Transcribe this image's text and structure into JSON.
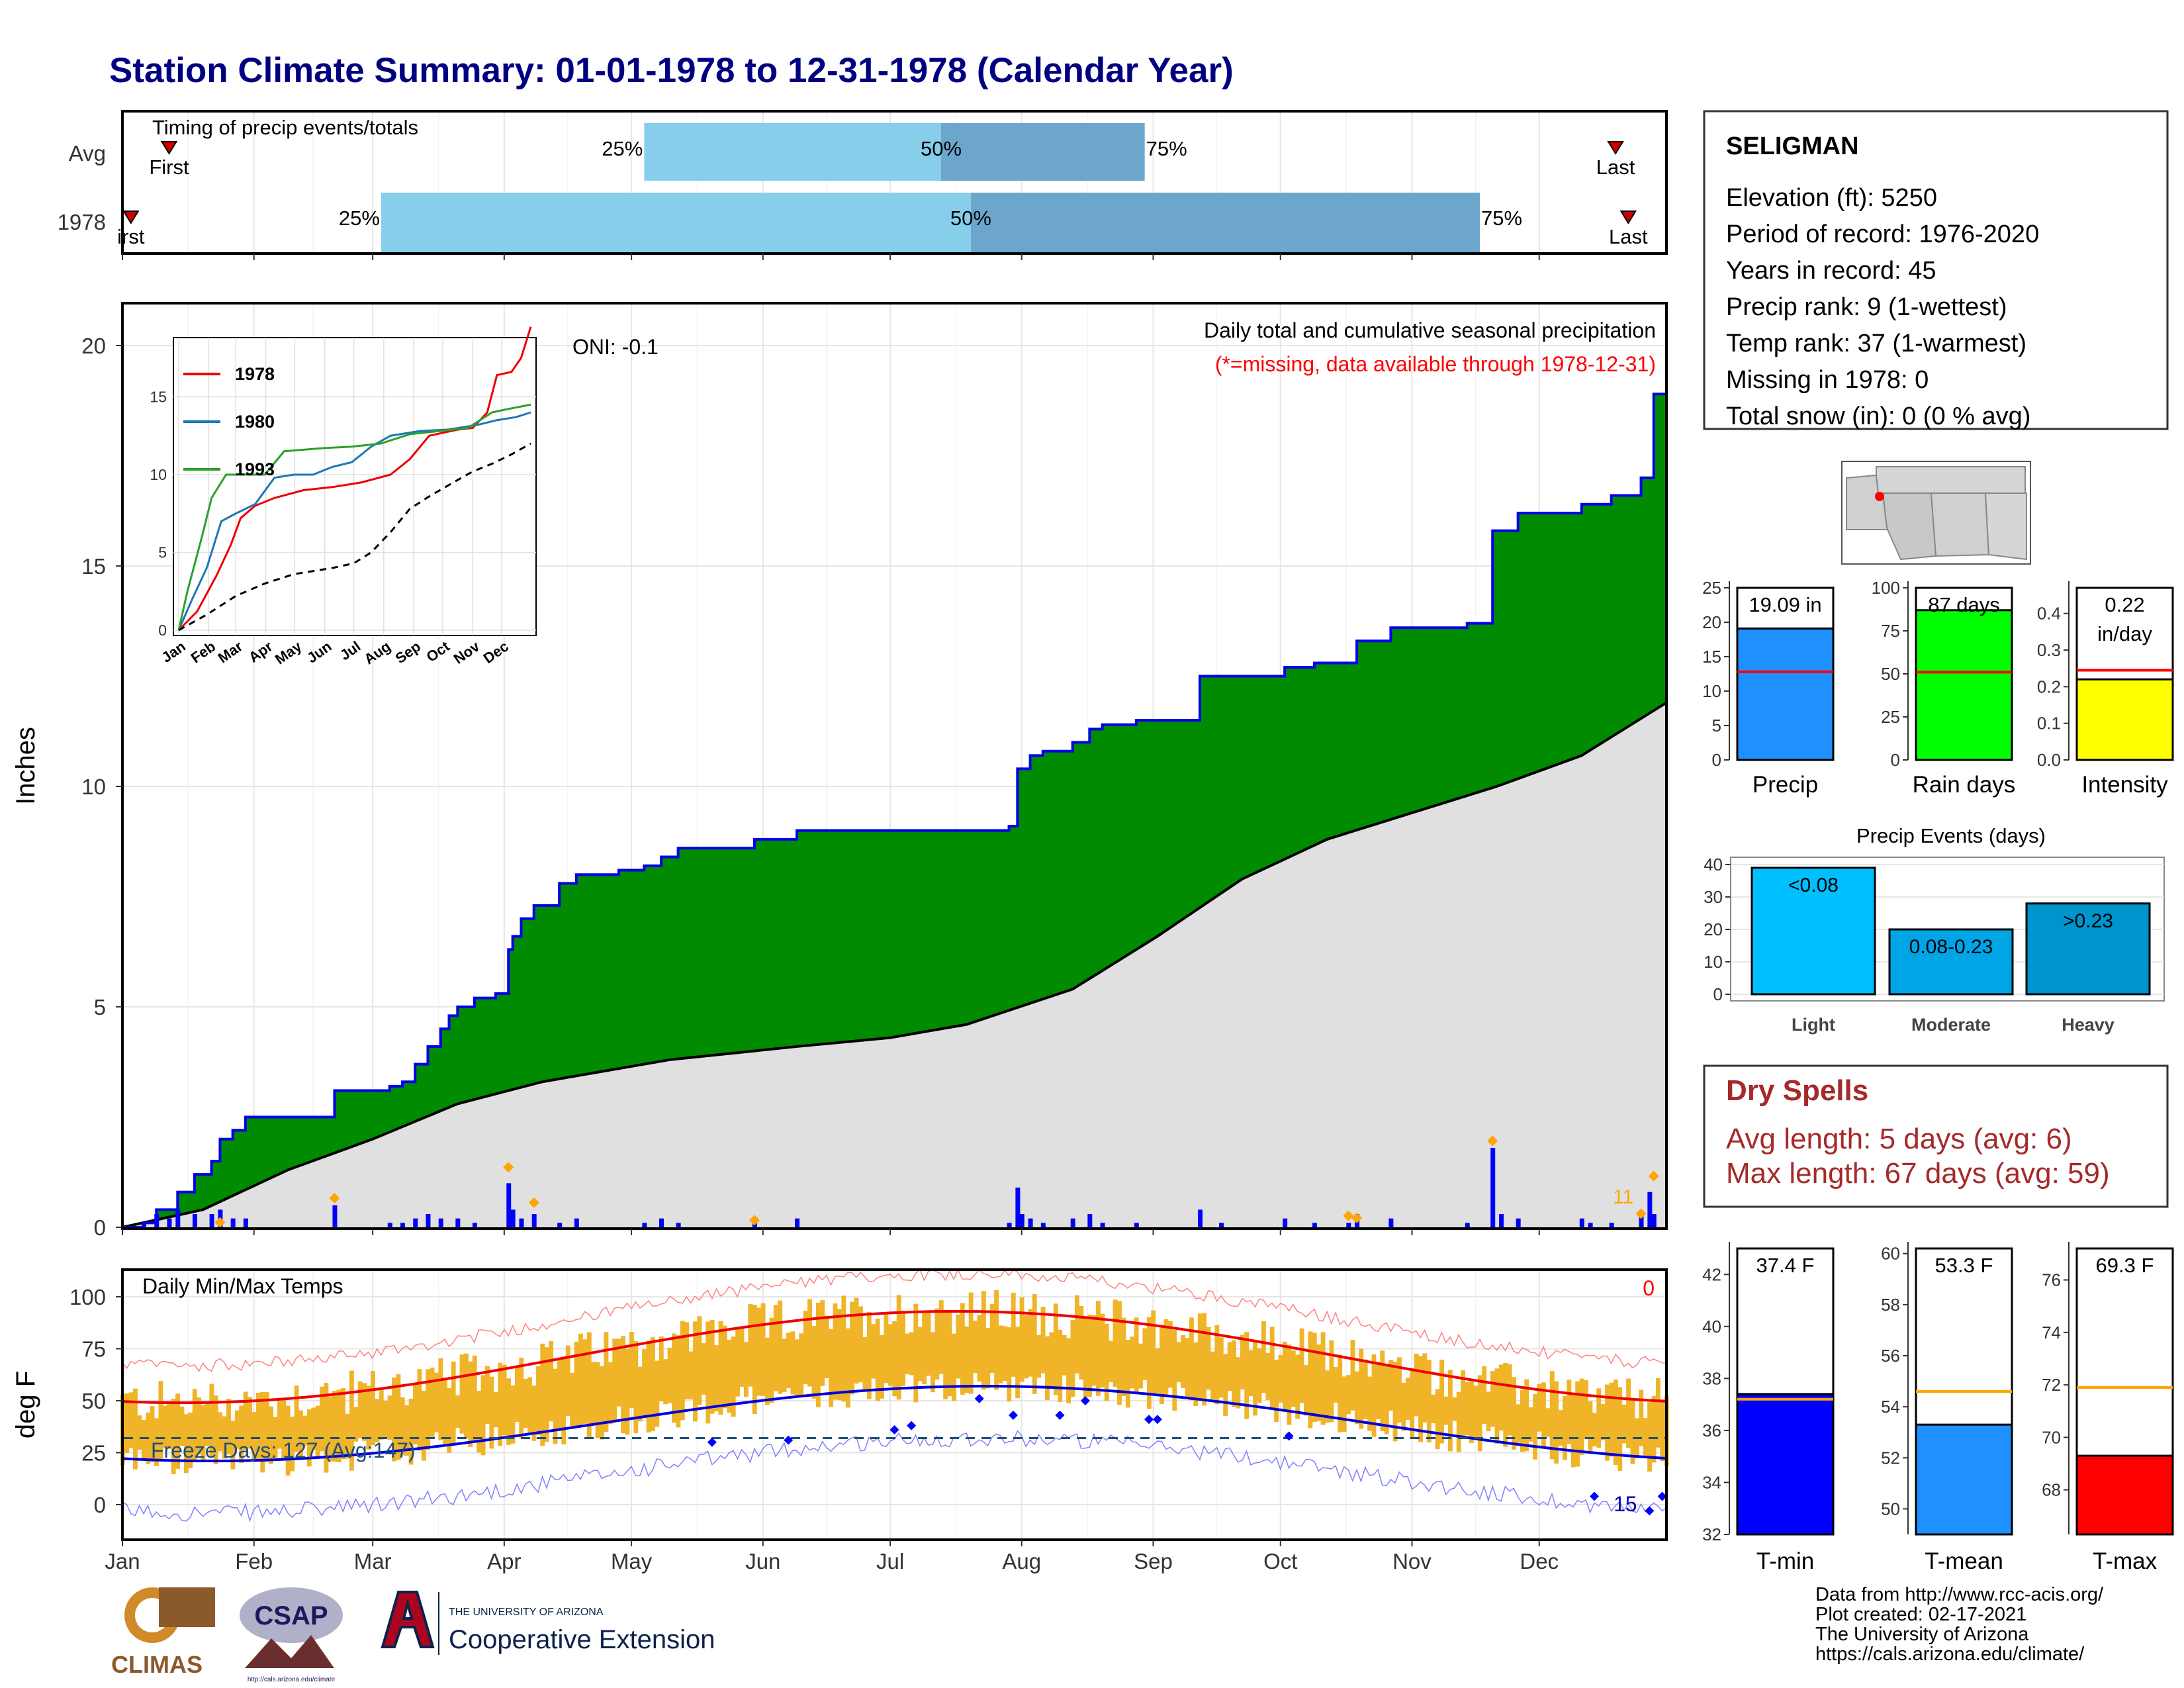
{
  "title": "Station Climate Summary: 01-01-1978 to 12-31-1978 (Calendar Year)",
  "timing": {
    "label": "Timing of precip events/totals",
    "rows": [
      {
        "name": "Avg",
        "first_label": "First",
        "last_label": "Last",
        "first_day": 12,
        "p25": 124,
        "p50": 194,
        "p75": 242,
        "last_day": 353
      },
      {
        "name": "1978",
        "first_label": "irst",
        "last_label": "Last",
        "first_day": 3,
        "p25": 62,
        "p50": 201,
        "p75": 321,
        "last_day": 356
      }
    ],
    "p_labels": [
      "25%",
      "50%",
      "75%"
    ],
    "colors": {
      "light": "#87ceeb",
      "dark": "#6ca6cd",
      "marker": "#cc0000"
    }
  },
  "main_chart": {
    "title": "Daily total and cumulative seasonal precipitation",
    "missing_note": "(*=missing, data available through 1978-12-31)",
    "oni": "ONI: -0.1",
    "ylabel": "Inches",
    "months": [
      "Jan",
      "Feb",
      "Mar",
      "Apr",
      "May",
      "Jun",
      "Jul",
      "Aug",
      "Sep",
      "Oct",
      "Nov",
      "Dec"
    ],
    "month_starts": [
      1,
      32,
      60,
      91,
      121,
      152,
      182,
      213,
      244,
      274,
      305,
      335
    ],
    "y_ticks": [
      0,
      5,
      10,
      15,
      20
    ],
    "missing_count": "11",
    "colors": {
      "cumulative_fill": "#008b00",
      "cumulative_line": "#0000ee",
      "normal_fill": "#e0e0e0",
      "normal_line": "#000000",
      "daily_bar": "#0000ff",
      "marker": "#ffa500",
      "missing_text": "#ffa500",
      "note": "#ff0000"
    }
  },
  "inset": {
    "series": [
      {
        "name": "1978",
        "color": "#ee0000"
      },
      {
        "name": "1980",
        "color": "#1f77b4"
      },
      {
        "name": "1993",
        "color": "#2ca02c"
      }
    ],
    "months": [
      "Jan",
      "Feb",
      "Mar",
      "Apr",
      "May",
      "Jun",
      "Jul",
      "Aug",
      "Sep",
      "Oct",
      "Nov",
      "Dec"
    ],
    "y_ticks": [
      0,
      5,
      10,
      15
    ]
  },
  "temp_chart": {
    "title": "Daily Min/Max Temps",
    "ylabel": "deg F",
    "y_ticks": [
      0,
      25,
      50,
      75,
      100
    ],
    "freeze_label": "Freeze Days: 127 (Avg:147)",
    "missing_count": "0",
    "below_count": "15",
    "colors": {
      "bar": "#f0b428",
      "max_line": "#ee0000",
      "min_line": "#0000dd",
      "record_max": "#ff8080",
      "record_min": "#8080ff",
      "freeze_line": "#1f4e79"
    }
  },
  "station": {
    "name": "SELIGMAN",
    "lines": [
      "Elevation (ft): 5250",
      "Period of record: 1976-2020",
      "Years in record: 45",
      "Precip rank: 9 (1-wettest)",
      "Temp rank: 37 (1-warmest)",
      "Missing in 1978: 0",
      "Total snow (in): 0 (0 % avg)"
    ]
  },
  "summary_bars": [
    {
      "label": "Precip",
      "value_text": "19.09 in",
      "value": 19.09,
      "avg": 12.8,
      "ticks": [
        0,
        5,
        10,
        15,
        20,
        25
      ],
      "ymax": 25,
      "color": "#1e90ff"
    },
    {
      "label": "Rain days",
      "value_text": "87 days",
      "value": 87,
      "avg": 51,
      "ticks": [
        0,
        25,
        50,
        75,
        100
      ],
      "ymax": 100,
      "color": "#00ff00"
    },
    {
      "label": "Intensity",
      "value_text": "0.22",
      "value_text2": "in/day",
      "value": 0.22,
      "avg": 0.245,
      "ticks": [
        0.0,
        0.1,
        0.2,
        0.3,
        0.4
      ],
      "ymax": 0.47,
      "color": "#ffff00"
    }
  ],
  "precip_events": {
    "title": "Precip Events (days)",
    "ticks": [
      0,
      10,
      20,
      30,
      40
    ],
    "bars": [
      {
        "label": "Light",
        "value": 39,
        "text": "<0.08",
        "color": "#00bfff"
      },
      {
        "label": "Moderate",
        "value": 20,
        "text": "0.08-0.23",
        "color": "#00a5e6"
      },
      {
        "label": "Heavy",
        "value": 28,
        "text": ">0.23",
        "color": "#0094cc"
      }
    ]
  },
  "dry_spells": {
    "title": "Dry Spells",
    "avg_line": "Avg length: 5 days (avg: 6)",
    "max_line": "Max length: 67 days (avg: 59)",
    "color": "#a52a2a"
  },
  "temp_bars": [
    {
      "label": "T-min",
      "value_text": "37.4 F",
      "value": 37.4,
      "avg": 37.2,
      "ticks": [
        32,
        34,
        36,
        38,
        40,
        42
      ],
      "ymin": 32,
      "ymax": 43,
      "color": "#0000ff"
    },
    {
      "label": "T-mean",
      "value_text": "53.3 F",
      "value": 53.3,
      "avg": 54.6,
      "ticks": [
        50,
        52,
        54,
        56,
        58,
        60
      ],
      "ymin": 49,
      "ymax": 60.2,
      "color": "#1e90ff"
    },
    {
      "label": "T-max",
      "value_text": "69.3 F",
      "value": 69.3,
      "avg": 71.9,
      "ticks": [
        68,
        70,
        72,
        74,
        76
      ],
      "ymin": 66.3,
      "ymax": 77.2,
      "color": "#ff0000"
    }
  ],
  "footer": {
    "lines": [
      "Data from http://www.rcc-acis.org/",
      "Plot created: 02-17-2021",
      "The University of Arizona",
      "https://cals.arizona.edu/climate/"
    ],
    "logo_climas": "CLIMAS",
    "logo_csap": "CSAP",
    "logo_csap_url": "http://cals.arizona.edu/climate",
    "ua_small": "THE UNIVERSITY OF ARIZONA",
    "ua_large": "Cooperative Extension"
  }
}
